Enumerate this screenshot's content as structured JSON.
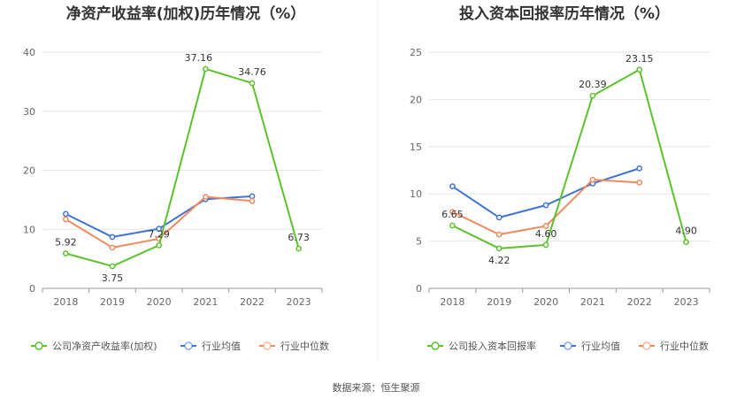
{
  "source_label": "数据来源：恒生聚源",
  "chart_data": [
    {
      "type": "line",
      "title": "净资产收益率(加权)历年情况（%）",
      "categories": [
        "2018",
        "2019",
        "2020",
        "2021",
        "2022",
        "2023"
      ],
      "ylim": [
        0,
        40
      ],
      "yticks": [
        0,
        10,
        20,
        30,
        40
      ],
      "grid": true,
      "legend_position": "bottom",
      "series": [
        {
          "name": "公司净资产收益率(加权)",
          "color": "#5cc22b",
          "values": [
            5.92,
            3.75,
            7.29,
            37.16,
            34.76,
            6.73
          ],
          "labels": [
            "5.92",
            "3.75",
            "7.29",
            "37.16",
            "34.76",
            "6.73"
          ]
        },
        {
          "name": "行业均值",
          "color": "#3e73d8",
          "values": [
            12.6,
            8.7,
            10.1,
            15.1,
            15.6,
            null
          ],
          "labels": []
        },
        {
          "name": "行业中位数",
          "color": "#f08a5d",
          "values": [
            11.7,
            6.9,
            8.4,
            15.5,
            14.8,
            null
          ],
          "labels": []
        }
      ]
    },
    {
      "type": "line",
      "title": "投入资本回报率历年情况（%）",
      "categories": [
        "2018",
        "2019",
        "2020",
        "2021",
        "2022",
        "2023"
      ],
      "ylim": [
        0,
        25
      ],
      "yticks": [
        0,
        5,
        10,
        15,
        20,
        25
      ],
      "grid": true,
      "legend_position": "bottom",
      "series": [
        {
          "name": "公司投入资本回报率",
          "color": "#5cc22b",
          "values": [
            6.65,
            4.22,
            4.6,
            20.39,
            23.15,
            4.9
          ],
          "labels": [
            "6.65",
            "4.22",
            "4.60",
            "20.39",
            "23.15",
            "4.90"
          ]
        },
        {
          "name": "行业均值",
          "color": "#3e73d8",
          "values": [
            10.8,
            7.5,
            8.8,
            11.1,
            12.7,
            null
          ],
          "labels": []
        },
        {
          "name": "行业中位数",
          "color": "#f08a5d",
          "values": [
            8.1,
            5.7,
            6.6,
            11.5,
            11.2,
            null
          ],
          "labels": []
        }
      ]
    }
  ]
}
